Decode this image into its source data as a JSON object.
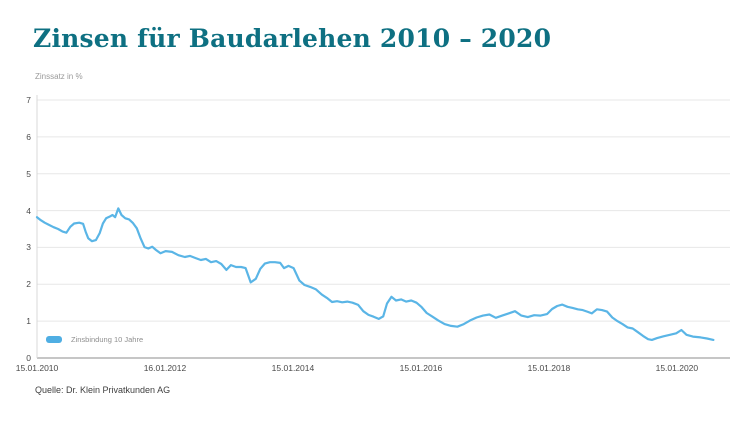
{
  "header": {
    "title": "Zinsen für Baudarlehen 2010 – 2020"
  },
  "chart": {
    "ylabel": "Zinssatz in %",
    "legend": {
      "label": "Zinsbindung 10 Jahre",
      "swatch_color": "#4faee3"
    },
    "source": "Quelle: Dr. Klein Privatkunden AG"
  },
  "colors": {
    "title": "#0e7082",
    "line": "#5ab5e6",
    "gridline": "#e7e7e7",
    "axis": "#8c8c8c",
    "left_spine": "#d8d8d8"
  },
  "chart_data": {
    "type": "line",
    "title": "Zinsen für Baudarlehen 2010 – 2020",
    "xlabel": "",
    "ylabel": "Zinssatz in %",
    "ylim": [
      0,
      7
    ],
    "xlim": [
      2010.04,
      2020.87
    ],
    "grid": "horizontal",
    "legend_position": "bottom-left-inside",
    "y_ticks": [
      0,
      1,
      2,
      3,
      4,
      5,
      6,
      7
    ],
    "x_ticks": [
      "15.01.2010",
      "16.01.2012",
      "15.01.2014",
      "15.01.2016",
      "15.01.2018",
      "15.01.2020"
    ],
    "x_tick_positions": [
      2010.04,
      2012.04,
      2014.04,
      2016.04,
      2018.04,
      2020.04
    ],
    "series": [
      {
        "name": "Zinsbindung 10 Jahre",
        "color": "#5ab5e6",
        "points": [
          [
            2010.04,
            3.82
          ],
          [
            2010.1,
            3.74
          ],
          [
            2010.16,
            3.67
          ],
          [
            2010.22,
            3.62
          ],
          [
            2010.3,
            3.55
          ],
          [
            2010.37,
            3.5
          ],
          [
            2010.44,
            3.43
          ],
          [
            2010.5,
            3.4
          ],
          [
            2010.56,
            3.56
          ],
          [
            2010.62,
            3.65
          ],
          [
            2010.7,
            3.67
          ],
          [
            2010.76,
            3.64
          ],
          [
            2010.8,
            3.43
          ],
          [
            2010.84,
            3.25
          ],
          [
            2010.9,
            3.17
          ],
          [
            2010.96,
            3.2
          ],
          [
            2011.02,
            3.39
          ],
          [
            2011.07,
            3.65
          ],
          [
            2011.12,
            3.79
          ],
          [
            2011.17,
            3.83
          ],
          [
            2011.22,
            3.88
          ],
          [
            2011.26,
            3.82
          ],
          [
            2011.31,
            4.06
          ],
          [
            2011.36,
            3.88
          ],
          [
            2011.42,
            3.79
          ],
          [
            2011.48,
            3.76
          ],
          [
            2011.54,
            3.66
          ],
          [
            2011.6,
            3.52
          ],
          [
            2011.66,
            3.24
          ],
          [
            2011.72,
            3.01
          ],
          [
            2011.78,
            2.97
          ],
          [
            2011.84,
            3.02
          ],
          [
            2011.9,
            2.93
          ],
          [
            2011.97,
            2.84
          ],
          [
            2012.05,
            2.9
          ],
          [
            2012.15,
            2.88
          ],
          [
            2012.25,
            2.79
          ],
          [
            2012.35,
            2.74
          ],
          [
            2012.43,
            2.77
          ],
          [
            2012.52,
            2.71
          ],
          [
            2012.6,
            2.66
          ],
          [
            2012.68,
            2.69
          ],
          [
            2012.76,
            2.6
          ],
          [
            2012.84,
            2.63
          ],
          [
            2012.92,
            2.55
          ],
          [
            2013.0,
            2.39
          ],
          [
            2013.07,
            2.52
          ],
          [
            2013.15,
            2.47
          ],
          [
            2013.23,
            2.47
          ],
          [
            2013.3,
            2.44
          ],
          [
            2013.38,
            2.05
          ],
          [
            2013.46,
            2.15
          ],
          [
            2013.53,
            2.42
          ],
          [
            2013.6,
            2.56
          ],
          [
            2013.68,
            2.6
          ],
          [
            2013.76,
            2.6
          ],
          [
            2013.84,
            2.58
          ],
          [
            2013.9,
            2.44
          ],
          [
            2013.97,
            2.5
          ],
          [
            2014.05,
            2.44
          ],
          [
            2014.14,
            2.1
          ],
          [
            2014.22,
            1.98
          ],
          [
            2014.31,
            1.93
          ],
          [
            2014.4,
            1.86
          ],
          [
            2014.49,
            1.72
          ],
          [
            2014.57,
            1.63
          ],
          [
            2014.65,
            1.52
          ],
          [
            2014.73,
            1.54
          ],
          [
            2014.81,
            1.51
          ],
          [
            2014.89,
            1.53
          ],
          [
            2014.97,
            1.5
          ],
          [
            2015.06,
            1.44
          ],
          [
            2015.14,
            1.27
          ],
          [
            2015.22,
            1.17
          ],
          [
            2015.3,
            1.12
          ],
          [
            2015.38,
            1.06
          ],
          [
            2015.45,
            1.13
          ],
          [
            2015.51,
            1.48
          ],
          [
            2015.58,
            1.66
          ],
          [
            2015.65,
            1.56
          ],
          [
            2015.73,
            1.59
          ],
          [
            2015.81,
            1.53
          ],
          [
            2015.89,
            1.56
          ],
          [
            2015.97,
            1.5
          ],
          [
            2016.05,
            1.38
          ],
          [
            2016.13,
            1.22
          ],
          [
            2016.22,
            1.12
          ],
          [
            2016.31,
            1.02
          ],
          [
            2016.41,
            0.92
          ],
          [
            2016.51,
            0.87
          ],
          [
            2016.61,
            0.85
          ],
          [
            2016.71,
            0.92
          ],
          [
            2016.81,
            1.02
          ],
          [
            2016.91,
            1.1
          ],
          [
            2017.01,
            1.15
          ],
          [
            2017.11,
            1.18
          ],
          [
            2017.21,
            1.09
          ],
          [
            2017.31,
            1.15
          ],
          [
            2017.41,
            1.21
          ],
          [
            2017.51,
            1.27
          ],
          [
            2017.61,
            1.15
          ],
          [
            2017.71,
            1.11
          ],
          [
            2017.81,
            1.16
          ],
          [
            2017.91,
            1.15
          ],
          [
            2018.01,
            1.19
          ],
          [
            2018.09,
            1.33
          ],
          [
            2018.17,
            1.41
          ],
          [
            2018.25,
            1.45
          ],
          [
            2018.33,
            1.39
          ],
          [
            2018.41,
            1.36
          ],
          [
            2018.49,
            1.32
          ],
          [
            2018.57,
            1.3
          ],
          [
            2018.65,
            1.25
          ],
          [
            2018.71,
            1.21
          ],
          [
            2018.79,
            1.32
          ],
          [
            2018.87,
            1.3
          ],
          [
            2018.95,
            1.26
          ],
          [
            2019.03,
            1.1
          ],
          [
            2019.11,
            1.0
          ],
          [
            2019.19,
            0.92
          ],
          [
            2019.27,
            0.83
          ],
          [
            2019.35,
            0.8
          ],
          [
            2019.43,
            0.7
          ],
          [
            2019.51,
            0.6
          ],
          [
            2019.59,
            0.51
          ],
          [
            2019.65,
            0.49
          ],
          [
            2019.73,
            0.54
          ],
          [
            2019.83,
            0.59
          ],
          [
            2019.93,
            0.63
          ],
          [
            2020.03,
            0.67
          ],
          [
            2020.11,
            0.76
          ],
          [
            2020.19,
            0.63
          ],
          [
            2020.29,
            0.58
          ],
          [
            2020.41,
            0.56
          ],
          [
            2020.51,
            0.53
          ],
          [
            2020.61,
            0.49
          ]
        ]
      }
    ]
  }
}
